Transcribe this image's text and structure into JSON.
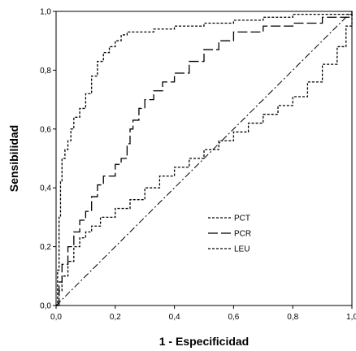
{
  "chart_data": {
    "type": "line",
    "title": "",
    "xlabel": "1 - Especificidad",
    "ylabel": "Sensibilidad",
    "xlim": [
      0,
      1
    ],
    "ylim": [
      0,
      1
    ],
    "xticks": [
      "0,0",
      "0,2",
      "0,4",
      "0,6",
      "0,8",
      "1,0"
    ],
    "yticks": [
      "0,0",
      "0,2",
      "0,4",
      "0,6",
      "0,8",
      "1,0"
    ],
    "grid": false,
    "legend_position": "bottom-right-inside",
    "reference_line": {
      "x": [
        0,
        1
      ],
      "y": [
        0,
        1
      ],
      "style": "dashdot"
    },
    "series": [
      {
        "name": "PCT",
        "style": "short-dash",
        "x": [
          0,
          0.005,
          0.01,
          0.015,
          0.02,
          0.03,
          0.04,
          0.05,
          0.06,
          0.08,
          0.1,
          0.12,
          0.14,
          0.16,
          0.18,
          0.2,
          0.22,
          0.24,
          0.28,
          0.33,
          0.4,
          0.5,
          0.6,
          0.7,
          0.8,
          1
        ],
        "y": [
          0,
          0.12,
          0.3,
          0.42,
          0.5,
          0.53,
          0.56,
          0.6,
          0.64,
          0.67,
          0.72,
          0.78,
          0.83,
          0.86,
          0.88,
          0.9,
          0.92,
          0.93,
          0.93,
          0.94,
          0.95,
          0.96,
          0.97,
          0.98,
          0.99,
          1
        ]
      },
      {
        "name": "PCR",
        "style": "long-dash",
        "x": [
          0,
          0.01,
          0.02,
          0.04,
          0.06,
          0.08,
          0.1,
          0.12,
          0.14,
          0.16,
          0.2,
          0.22,
          0.24,
          0.25,
          0.26,
          0.28,
          0.3,
          0.33,
          0.36,
          0.4,
          0.45,
          0.5,
          0.55,
          0.6,
          0.7,
          0.8,
          0.9,
          1
        ],
        "y": [
          0,
          0.08,
          0.14,
          0.2,
          0.25,
          0.29,
          0.32,
          0.37,
          0.41,
          0.44,
          0.48,
          0.5,
          0.55,
          0.6,
          0.63,
          0.67,
          0.7,
          0.73,
          0.76,
          0.79,
          0.83,
          0.87,
          0.9,
          0.93,
          0.95,
          0.96,
          0.98,
          1
        ]
      },
      {
        "name": "LEU",
        "style": "short-dash",
        "x": [
          0,
          0.01,
          0.02,
          0.04,
          0.06,
          0.08,
          0.1,
          0.12,
          0.15,
          0.2,
          0.25,
          0.3,
          0.35,
          0.4,
          0.45,
          0.5,
          0.55,
          0.6,
          0.65,
          0.7,
          0.75,
          0.8,
          0.85,
          0.9,
          0.95,
          0.98,
          1
        ],
        "y": [
          0,
          0.05,
          0.1,
          0.15,
          0.2,
          0.23,
          0.25,
          0.27,
          0.3,
          0.33,
          0.36,
          0.4,
          0.44,
          0.47,
          0.5,
          0.53,
          0.56,
          0.59,
          0.62,
          0.65,
          0.68,
          0.71,
          0.76,
          0.82,
          0.88,
          0.95,
          1
        ]
      }
    ]
  }
}
